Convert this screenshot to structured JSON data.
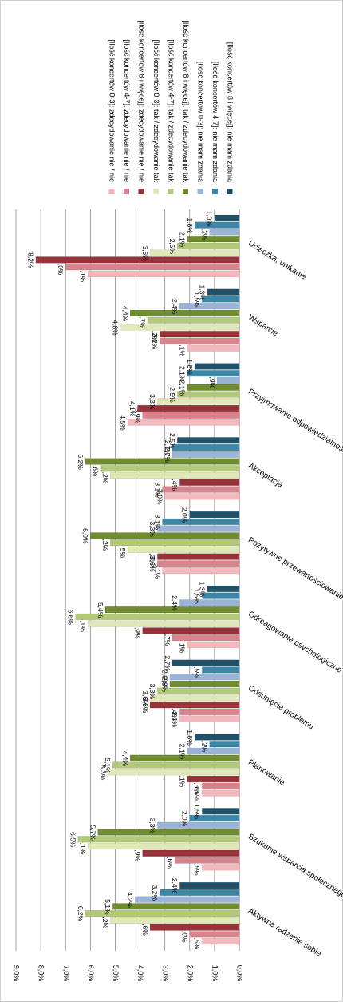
{
  "chart_data": {
    "type": "bar",
    "categories": [
      "Aktywne radzenie sobie",
      "Szukanie wsparcia społecznego",
      "Planowanie",
      "Odsunięcie problemu",
      "Odreagowanie psychologiczne",
      "Pozytywne przewartościowanie",
      "Akceptacja",
      "Przyjmowanie odpowiedzialności",
      "Wsparcie",
      "Ucieczka, unikanie"
    ],
    "xlim": [
      0,
      9
    ],
    "xticks": [
      {
        "value": 0,
        "label": "0,0%"
      },
      {
        "value": 1,
        "label": "1,0%"
      },
      {
        "value": 2,
        "label": "2,0%"
      },
      {
        "value": 3,
        "label": "3,0%"
      },
      {
        "value": 4,
        "label": "4,0%"
      },
      {
        "value": 5,
        "label": "5,0%"
      },
      {
        "value": 6,
        "label": "6,0%"
      },
      {
        "value": 7,
        "label": "7,0%"
      },
      {
        "value": 8,
        "label": "8,0%"
      },
      {
        "value": 9,
        "label": "9,0%"
      }
    ],
    "grid": true,
    "series": [
      {
        "name": "[Ilość koncertów 0-3]: zdecydowanie nie / nie",
        "color": "#f2b8bd",
        "values": [
          1.5,
          1.5,
          1.5,
          2.4,
          2.1,
          3.1,
          3.0,
          4.5,
          2.1,
          6.1
        ],
        "value_labels": [
          "1,5%",
          "1,5%",
          "1,5%",
          "2,4%",
          "2,1%",
          "3,1%",
          "3,0%",
          "4,5%",
          "2,1%",
          "6,1%"
        ]
      },
      {
        "name": "[Ilość koncertów 4-7]: zdecydowanie nie / nie",
        "color": "#d9848c",
        "values": [
          2.0,
          2.6,
          1.5,
          2.4,
          2.7,
          3.3,
          3.1,
          3.9,
          3.2,
          7.0
        ],
        "value_labels": [
          "2,0%",
          "2,6%",
          "1,5%",
          "2,4%",
          "2,7%",
          "3,3%",
          "3,1%",
          "3,9%",
          "3,2%",
          "7,0%"
        ]
      },
      {
        "name": "[Ilość koncertów 8 i więcej]: zdecydowanie nie / nie",
        "color": "#963439",
        "values": [
          3.6,
          3.9,
          2.1,
          3.6,
          3.9,
          3.3,
          2.4,
          4.1,
          3.2,
          8.2
        ],
        "value_labels": [
          "3,6%",
          "3,9%",
          "2,1%",
          "3,6%",
          "3,9%",
          "3,3%",
          "2,4%",
          "4,1%",
          "3,2%",
          "8,2%"
        ]
      },
      {
        "name": "[Ilość koncertów 0-3]: tak / zdecydowanie tak",
        "color": "#dfe8b8",
        "values": [
          5.2,
          6.1,
          5.3,
          3.6,
          6.1,
          4.5,
          5.2,
          3.3,
          4.8,
          3.6
        ],
        "value_labels": [
          "5,2%",
          "6,1%",
          "5,3%",
          "3,6%",
          "6,1%",
          "4,5%",
          "5,2%",
          "3,3%",
          "4,8%",
          "3,6%"
        ]
      },
      {
        "name": "[Ilość koncertów 4-7]: tak / zdecydowanie tak",
        "color": "#b3c97a",
        "values": [
          6.2,
          6.5,
          5.1,
          3.3,
          6.6,
          5.2,
          5.6,
          2.5,
          3.7,
          2.5
        ],
        "value_labels": [
          "6,2%",
          "6,5%",
          "5,1%",
          "3,3%",
          "6,6%",
          "5,2%",
          "5,6%",
          "2,5%",
          "3,7%",
          "2,5%"
        ]
      },
      {
        "name": "[Ilość koncertów 8 i więcej]: tak / zdecydowanie tak",
        "color": "#6f8c2e",
        "values": [
          5.1,
          5.7,
          4.4,
          2.8,
          5.4,
          6.0,
          6.2,
          2.1,
          4.4,
          2.1
        ],
        "value_labels": [
          "5,1%",
          "5,7%",
          "4,4%",
          "2,8%",
          "5,4%",
          "6,0%",
          "6,2%",
          "2,1%",
          "4,4%",
          "2,1%"
        ]
      },
      {
        "name": "[Ilość koncertów 0-3]: nie mam zdania",
        "color": "#9ab4d8",
        "values": [
          4.2,
          3.3,
          2.1,
          2.8,
          2.4,
          3.3,
          2.7,
          0.9,
          2.4,
          1.2
        ],
        "value_labels": [
          "4,2%",
          "3,3%",
          "2,1%",
          "2,8%",
          "2,4%",
          "3,3%",
          "2,7%",
          "0,9%",
          "2,4%",
          "1,2%"
        ]
      },
      {
        "name": "[Ilość koncertów 4-7]: nie mam zdania",
        "color": "#3c87a6",
        "values": [
          3.2,
          2.0,
          1.2,
          1.5,
          1.5,
          3.1,
          2.7,
          2.1,
          1.5,
          1.8
        ],
        "value_labels": [
          "3,2%",
          "2,0%",
          "1,2%",
          "1,5%",
          "1,5%",
          "3,1%",
          "2,7%",
          "2,1%",
          "1,5%",
          "1,8%"
        ]
      },
      {
        "name": "[Ilość koncertów 8 i więcej]: nie mam zdania",
        "color": "#1f5068",
        "values": [
          2.4,
          1.5,
          1.8,
          2.7,
          1.3,
          2.0,
          2.5,
          1.8,
          1.3,
          1.0
        ],
        "value_labels": [
          "2,4%",
          "1,5%",
          "1,8%",
          "2,7%",
          "1,3%",
          "2,0%",
          "2,5%",
          "1,8%",
          "1,3%",
          "1,0%"
        ]
      }
    ]
  }
}
